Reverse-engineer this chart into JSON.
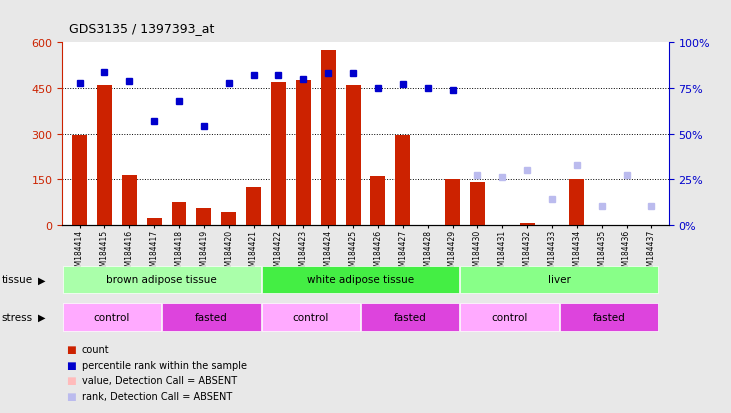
{
  "title": "GDS3135 / 1397393_at",
  "samples": [
    "GSM184414",
    "GSM184415",
    "GSM184416",
    "GSM184417",
    "GSM184418",
    "GSM184419",
    "GSM184420",
    "GSM184421",
    "GSM184422",
    "GSM184423",
    "GSM184424",
    "GSM184425",
    "GSM184426",
    "GSM184427",
    "GSM184428",
    "GSM184429",
    "GSM184430",
    "GSM184431",
    "GSM184432",
    "GSM184433",
    "GSM184434",
    "GSM184435",
    "GSM184436",
    "GSM184437"
  ],
  "counts": [
    295,
    460,
    162,
    22,
    75,
    55,
    40,
    125,
    470,
    475,
    575,
    460,
    160,
    295,
    0,
    150,
    140,
    0,
    5,
    0,
    150,
    0,
    0,
    0
  ],
  "count_absent": [
    false,
    false,
    false,
    false,
    false,
    false,
    false,
    false,
    false,
    false,
    false,
    false,
    false,
    false,
    false,
    false,
    false,
    true,
    false,
    true,
    false,
    true,
    true,
    true
  ],
  "percentile_ranks": [
    78,
    84,
    79,
    57,
    68,
    54,
    78,
    82,
    82,
    80,
    83,
    83,
    75,
    77,
    75,
    74,
    null,
    null,
    null,
    null,
    null,
    null,
    null,
    null
  ],
  "rank_absent": [
    false,
    false,
    false,
    false,
    false,
    false,
    false,
    false,
    false,
    false,
    false,
    false,
    false,
    false,
    false,
    false,
    true,
    true,
    true,
    true,
    true,
    true,
    true,
    true
  ],
  "rank_absent_values": [
    null,
    null,
    null,
    null,
    null,
    null,
    null,
    null,
    null,
    null,
    null,
    null,
    null,
    null,
    null,
    null,
    27,
    26,
    30,
    14,
    33,
    10,
    27,
    10
  ],
  "tissues": [
    {
      "label": "brown adipose tissue",
      "start": 0,
      "end": 8,
      "color": "#aaffaa"
    },
    {
      "label": "white adipose tissue",
      "start": 8,
      "end": 16,
      "color": "#44ee44"
    },
    {
      "label": "liver",
      "start": 16,
      "end": 24,
      "color": "#88ff88"
    }
  ],
  "stresses": [
    {
      "label": "control",
      "start": 0,
      "end": 4,
      "color": "#ffaaff"
    },
    {
      "label": "fasted",
      "start": 4,
      "end": 8,
      "color": "#dd44dd"
    },
    {
      "label": "control",
      "start": 8,
      "end": 12,
      "color": "#ffaaff"
    },
    {
      "label": "fasted",
      "start": 12,
      "end": 16,
      "color": "#dd44dd"
    },
    {
      "label": "control",
      "start": 16,
      "end": 20,
      "color": "#ffaaff"
    },
    {
      "label": "fasted",
      "start": 20,
      "end": 24,
      "color": "#dd44dd"
    }
  ],
  "ylim_left": [
    0,
    600
  ],
  "ylim_right": [
    0,
    100
  ],
  "yticks_left": [
    0,
    150,
    300,
    450,
    600
  ],
  "yticks_right": [
    0,
    25,
    50,
    75,
    100
  ],
  "bar_color": "#cc2200",
  "dot_color": "#0000cc",
  "absent_count_color": "#ffbbbb",
  "absent_rank_color": "#bbbbee",
  "bg_color": "#e8e8e8",
  "plot_bg": "#ffffff",
  "grid_lines": [
    150,
    300,
    450
  ]
}
